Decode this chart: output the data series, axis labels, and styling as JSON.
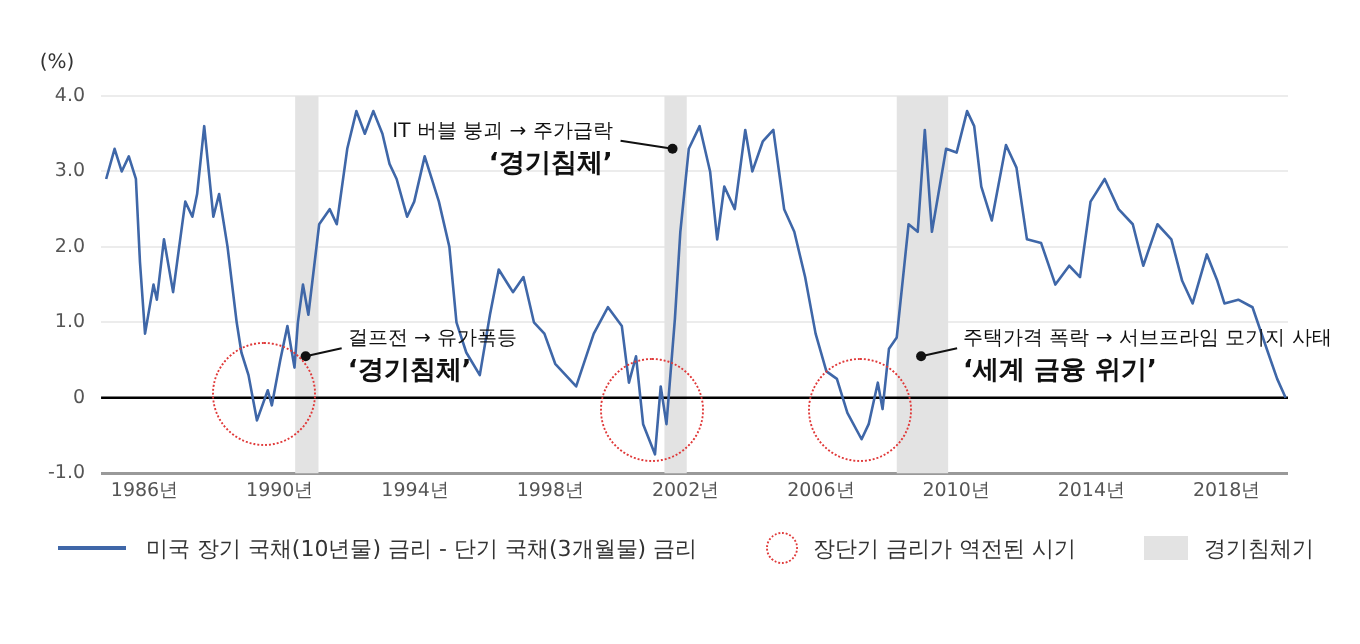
{
  "chart_data": {
    "type": "line",
    "ylabel": "(%)",
    "x": [
      1984.85,
      1985.1,
      1985.31,
      1985.52,
      1985.73,
      1985.85,
      1986.0,
      1986.25,
      1986.35,
      1986.56,
      1986.83,
      1987.19,
      1987.4,
      1987.54,
      1987.75,
      1988.02,
      1988.19,
      1988.44,
      1988.71,
      1988.85,
      1989.06,
      1989.31,
      1989.63,
      1989.75,
      1990.0,
      1990.21,
      1990.42,
      1990.52,
      1990.67,
      1990.83,
      1991.15,
      1991.46,
      1991.67,
      1991.98,
      1992.25,
      1992.5,
      1992.75,
      1993.02,
      1993.23,
      1993.44,
      1993.75,
      1993.96,
      1994.27,
      1994.48,
      1994.69,
      1995.0,
      1995.21,
      1995.5,
      1995.9,
      1996.2,
      1996.46,
      1996.88,
      1997.19,
      1997.5,
      1997.81,
      1998.13,
      1998.75,
      1999.27,
      1999.69,
      2000.1,
      2000.31,
      2000.52,
      2000.73,
      2001.08,
      2001.25,
      2001.42,
      2001.67,
      2001.83,
      2002.08,
      2002.4,
      2002.71,
      2002.92,
      2003.13,
      2003.44,
      2003.75,
      2003.96,
      2004.27,
      2004.58,
      2004.9,
      2005.2,
      2005.52,
      2005.83,
      2006.15,
      2006.46,
      2006.77,
      2007.19,
      2007.4,
      2007.67,
      2007.81,
      2008.0,
      2008.23,
      2008.44,
      2008.58,
      2008.85,
      2009.06,
      2009.27,
      2009.48,
      2009.69,
      2010.0,
      2010.31,
      2010.52,
      2010.73,
      2011.04,
      2011.46,
      2011.77,
      2012.08,
      2012.5,
      2012.92,
      2013.33,
      2013.65,
      2013.96,
      2014.38,
      2014.79,
      2015.21,
      2015.52,
      2015.94,
      2016.35,
      2016.67,
      2016.98,
      2017.4,
      2017.71,
      2017.92,
      2018.33,
      2018.75,
      2019.17,
      2019.48,
      2019.73
    ],
    "series": [
      {
        "name": "미국 장기 국채(10년물) 금리 - 단기 국채(3개월물) 금리",
        "color": "#3f67a8",
        "values": [
          2.9,
          3.3,
          3.0,
          3.2,
          2.9,
          1.8,
          0.85,
          1.5,
          1.3,
          2.1,
          1.4,
          2.6,
          2.4,
          2.7,
          3.6,
          2.4,
          2.7,
          2.0,
          1.0,
          0.6,
          0.3,
          -0.3,
          0.1,
          -0.1,
          0.5,
          0.95,
          0.4,
          1.0,
          1.5,
          1.1,
          2.3,
          2.5,
          2.3,
          3.3,
          3.8,
          3.5,
          3.8,
          3.5,
          3.1,
          2.9,
          2.4,
          2.6,
          3.2,
          2.9,
          2.6,
          2.0,
          1.0,
          0.6,
          0.3,
          1.1,
          1.7,
          1.4,
          1.6,
          1.0,
          0.85,
          0.45,
          0.15,
          0.85,
          1.2,
          0.95,
          0.2,
          0.55,
          -0.35,
          -0.75,
          0.15,
          -0.35,
          1.05,
          2.2,
          3.3,
          3.6,
          3.0,
          2.1,
          2.8,
          2.5,
          3.55,
          3.0,
          3.4,
          3.55,
          2.5,
          2.2,
          1.6,
          0.85,
          0.35,
          0.25,
          -0.2,
          -0.55,
          -0.35,
          0.2,
          -0.15,
          0.65,
          0.8,
          1.7,
          2.3,
          2.2,
          3.55,
          2.2,
          2.75,
          3.3,
          3.25,
          3.8,
          3.6,
          2.8,
          2.35,
          3.35,
          3.05,
          2.1,
          2.05,
          1.5,
          1.75,
          1.6,
          2.6,
          2.9,
          2.5,
          2.3,
          1.75,
          2.3,
          2.1,
          1.55,
          1.25,
          1.9,
          1.55,
          1.25,
          1.3,
          1.2,
          0.65,
          0.25,
          0.0
        ]
      }
    ],
    "xlim": [
      1984.7,
      2019.8
    ],
    "xticks": [
      {
        "value": 1986,
        "label": "1986년"
      },
      {
        "value": 1990,
        "label": "1990년"
      },
      {
        "value": 1994,
        "label": "1994년"
      },
      {
        "value": 1998,
        "label": "1998년"
      },
      {
        "value": 2002,
        "label": "2002년"
      },
      {
        "value": 2006,
        "label": "2006년"
      },
      {
        "value": 2010,
        "label": "2010년"
      },
      {
        "value": 2014,
        "label": "2014년"
      },
      {
        "value": 2018,
        "label": "2018년"
      }
    ],
    "ylim": [
      -1,
      4
    ],
    "yticks": [
      {
        "value": -1,
        "label": "-1.0"
      },
      0,
      {
        "value": 1,
        "label": "1.0"
      },
      {
        "value": 2,
        "label": "2.0"
      },
      {
        "value": 3,
        "label": "3.0"
      },
      {
        "value": 4,
        "label": "4.0"
      }
    ],
    "grid": "y",
    "legend": "bottom",
    "marker": "none",
    "line_style": "solid",
    "ref_lines": [
      {
        "axis": "y",
        "value": 0,
        "color": "#000000"
      }
    ],
    "bands": [
      {
        "axis": "x",
        "from": 1990.44,
        "to": 1991.13,
        "label": "경기침체기",
        "color": "#e3e3e3"
      },
      {
        "axis": "x",
        "from": 2001.36,
        "to": 2002.02,
        "color": "#e3e3e3"
      },
      {
        "axis": "x",
        "from": 2008.23,
        "to": 2009.75,
        "color": "#e3e3e3"
      }
    ],
    "annotations": [
      {
        "text": "걸프전 → 유가폭등\n‘경기침체’",
        "x": 1990.75,
        "y": 0.55
      },
      {
        "text": "IT 버블 붕괴 → 주가급락\n‘경기침체’",
        "x": 2001.6,
        "y": 3.3
      },
      {
        "text": "주택가격 폭락 → 서브프라임 모기지 사태\n‘세계 금융 위기’",
        "x": 2008.95,
        "y": 0.55
      },
      "장단기 금리가 역전된 시기"
    ]
  }
}
